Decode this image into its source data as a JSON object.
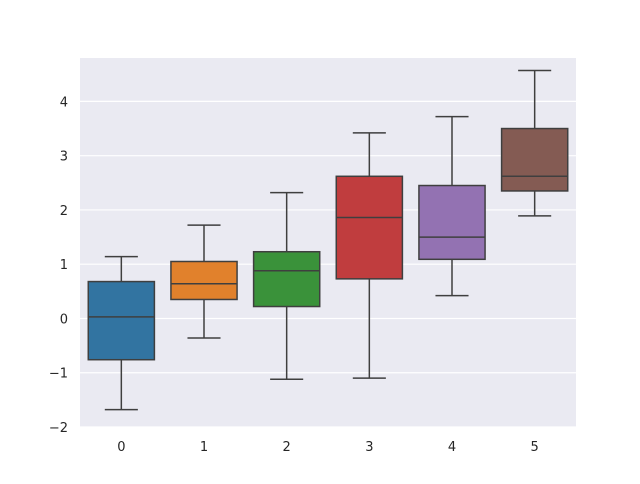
{
  "chart_data": {
    "type": "boxplot",
    "title": "",
    "xlabel": "",
    "ylabel": "",
    "ylim": [
      -2,
      4.8
    ],
    "yticks": [
      -2,
      -1,
      0,
      1,
      2,
      3,
      4
    ],
    "ytick_labels": [
      "−2",
      "−1",
      "0",
      "1",
      "2",
      "3",
      "4"
    ],
    "categories": [
      "0",
      "1",
      "2",
      "3",
      "4",
      "5"
    ],
    "grid": true,
    "background": "#eaeaf2",
    "boxes": [
      {
        "category": "0",
        "whisker_low": -1.68,
        "q1": -0.76,
        "median": 0.03,
        "q3": 0.68,
        "whisker_high": 1.14,
        "color": "#3274a1"
      },
      {
        "category": "1",
        "whisker_low": -0.36,
        "q1": 0.35,
        "median": 0.64,
        "q3": 1.05,
        "whisker_high": 1.72,
        "color": "#e1812c"
      },
      {
        "category": "2",
        "whisker_low": -1.12,
        "q1": 0.22,
        "median": 0.88,
        "q3": 1.23,
        "whisker_high": 2.32,
        "color": "#3a923a"
      },
      {
        "category": "3",
        "whisker_low": -1.1,
        "q1": 0.73,
        "median": 1.86,
        "q3": 2.62,
        "whisker_high": 3.42,
        "color": "#c03d3e"
      },
      {
        "category": "4",
        "whisker_low": 0.42,
        "q1": 1.09,
        "median": 1.5,
        "q3": 2.45,
        "whisker_high": 3.72,
        "color": "#9372b2"
      },
      {
        "category": "5",
        "whisker_low": 1.89,
        "q1": 2.35,
        "median": 2.62,
        "q3": 3.5,
        "whisker_high": 4.57,
        "color": "#845b53"
      }
    ]
  }
}
